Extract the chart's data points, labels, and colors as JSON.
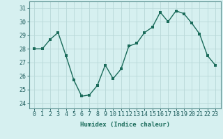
{
  "x": [
    0,
    1,
    2,
    3,
    4,
    5,
    6,
    7,
    8,
    9,
    10,
    11,
    12,
    13,
    14,
    15,
    16,
    17,
    18,
    19,
    20,
    21,
    22,
    23
  ],
  "y": [
    28.0,
    28.0,
    28.7,
    29.2,
    27.5,
    25.7,
    24.5,
    24.6,
    25.3,
    26.8,
    25.8,
    26.5,
    28.2,
    28.4,
    29.2,
    29.6,
    30.7,
    30.0,
    30.8,
    30.6,
    29.9,
    29.1,
    27.5,
    26.8
  ],
  "line_color": "#1a6b5a",
  "marker_color": "#1a6b5a",
  "bg_color": "#d6f0f0",
  "grid_color": "#b8d8d8",
  "xlabel": "Humidex (Indice chaleur)",
  "ylim": [
    23.6,
    31.5
  ],
  "yticks": [
    24,
    25,
    26,
    27,
    28,
    29,
    30,
    31
  ],
  "xtick_labels": [
    "0",
    "1",
    "2",
    "3",
    "4",
    "5",
    "6",
    "7",
    "8",
    "9",
    "10",
    "11",
    "12",
    "13",
    "14",
    "15",
    "16",
    "17",
    "18",
    "19",
    "20",
    "21",
    "22",
    "23"
  ],
  "label_fontsize": 6.5,
  "tick_fontsize": 6.0,
  "line_width": 1.0,
  "marker_size": 2.5
}
